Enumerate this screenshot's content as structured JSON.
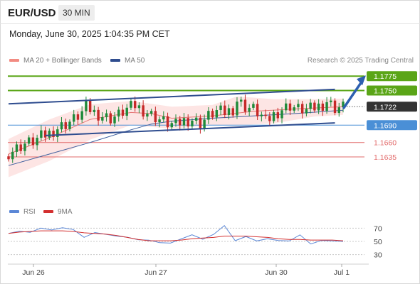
{
  "header": {
    "symbol": "EUR/USD",
    "timeframe": "30 MIN",
    "timestamp": "Monday, June 30, 2025 1:04:35 PM CET"
  },
  "legend": {
    "bollinger_label": "MA 20 + Bollinger Bands",
    "ma50_label": "MA 50",
    "rsi_label": "RSI",
    "rsi_ma_label": "9MA",
    "credit": "Research © 2025 Trading Central"
  },
  "colors": {
    "up_candle": "#1f8a3a",
    "down_candle": "#c62828",
    "bollinger_fill": "#fde0df",
    "ma20": "#e57373",
    "ma50": "#3f5f9e",
    "channel": "#2f4d8f",
    "resistance": "#5aa517",
    "pivot": "#4a8fd6",
    "support": "#e26a6a",
    "last_price_bg": "#333333",
    "rsi_line": "#5b87d6",
    "rsi_ma_line": "#d32f2f"
  },
  "chart_data": [
    {
      "type": "candlestick",
      "title": "EUR/USD",
      "x_ticks": [
        "Jun 26",
        "Jun 27",
        "Jun 30",
        "Jul 1"
      ],
      "ylim": [
        1.156,
        1.179
      ],
      "levels": [
        {
          "value": 1.1775,
          "label": "1.1775",
          "kind": "resistance"
        },
        {
          "value": 1.175,
          "label": "1.1750",
          "kind": "resistance"
        },
        {
          "value": 1.1722,
          "label": "1.1722",
          "kind": "last"
        },
        {
          "value": 1.169,
          "label": "1.1690",
          "kind": "pivot"
        },
        {
          "value": 1.166,
          "label": "1.1660",
          "kind": "support"
        },
        {
          "value": 1.1635,
          "label": "1.1635",
          "kind": "support"
        }
      ],
      "channel": {
        "upper": [
          [
            0,
            1.1727
          ],
          [
            80,
            1.1752
          ]
        ],
        "lower": [
          [
            9,
            1.1672
          ],
          [
            80,
            1.1694
          ]
        ]
      },
      "close_path": [
        [
          0,
          1.1642
        ],
        [
          2,
          1.165
        ],
        [
          4,
          1.1658
        ],
        [
          6,
          1.1662
        ],
        [
          8,
          1.167
        ],
        [
          10,
          1.1676
        ],
        [
          12,
          1.1685
        ],
        [
          14,
          1.1692
        ],
        [
          16,
          1.17
        ],
        [
          18,
          1.1712
        ],
        [
          19,
          1.1722
        ],
        [
          21,
          1.1712
        ],
        [
          23,
          1.1706
        ],
        [
          25,
          1.1702
        ],
        [
          27,
          1.1708
        ],
        [
          29,
          1.1718
        ],
        [
          31,
          1.1724
        ],
        [
          33,
          1.1716
        ],
        [
          35,
          1.1708
        ],
        [
          37,
          1.17
        ],
        [
          39,
          1.1693
        ],
        [
          41,
          1.169
        ],
        [
          43,
          1.1698
        ],
        [
          45,
          1.17
        ],
        [
          47,
          1.1693
        ],
        [
          49,
          1.1706
        ],
        [
          51,
          1.1714
        ],
        [
          53,
          1.1712
        ],
        [
          55,
          1.1718
        ],
        [
          56,
          1.1733
        ],
        [
          58,
          1.1722
        ],
        [
          60,
          1.1718
        ],
        [
          62,
          1.1706
        ],
        [
          63,
          1.1695
        ],
        [
          65,
          1.1708
        ],
        [
          67,
          1.1718
        ],
        [
          69,
          1.1724
        ],
        [
          71,
          1.1718
        ],
        [
          73,
          1.1716
        ],
        [
          75,
          1.172
        ],
        [
          77,
          1.1726
        ],
        [
          78,
          1.1732
        ],
        [
          80,
          1.172
        ],
        [
          82,
          1.1722
        ]
      ],
      "ma50_path": [
        [
          0,
          1.162
        ],
        [
          10,
          1.164
        ],
        [
          20,
          1.166
        ],
        [
          30,
          1.1682
        ],
        [
          35,
          1.1692
        ],
        [
          40,
          1.1697
        ],
        [
          50,
          1.1702
        ],
        [
          60,
          1.1706
        ],
        [
          70,
          1.171
        ],
        [
          82,
          1.1716
        ]
      ],
      "ma20_path": [
        [
          0,
          1.164
        ],
        [
          10,
          1.1668
        ],
        [
          20,
          1.17
        ],
        [
          30,
          1.1712
        ],
        [
          35,
          1.171
        ],
        [
          40,
          1.1702
        ],
        [
          50,
          1.1706
        ],
        [
          60,
          1.1714
        ],
        [
          70,
          1.1718
        ],
        [
          82,
          1.1722
        ]
      ],
      "bollinger_upper": [
        [
          0,
          1.1666
        ],
        [
          10,
          1.17
        ],
        [
          20,
          1.1726
        ],
        [
          30,
          1.1732
        ],
        [
          40,
          1.1722
        ],
        [
          50,
          1.1725
        ],
        [
          56,
          1.174
        ],
        [
          65,
          1.1735
        ],
        [
          75,
          1.1735
        ],
        [
          82,
          1.1736
        ]
      ],
      "bollinger_lower": [
        [
          0,
          1.16
        ],
        [
          10,
          1.1628
        ],
        [
          20,
          1.1665
        ],
        [
          30,
          1.169
        ],
        [
          40,
          1.1684
        ],
        [
          50,
          1.169
        ],
        [
          56,
          1.169
        ],
        [
          65,
          1.1693
        ],
        [
          75,
          1.1705
        ],
        [
          82,
          1.1708
        ]
      ]
    },
    {
      "type": "line",
      "title": "RSI",
      "ylim": [
        20,
        80
      ],
      "y_ticks": [
        70,
        50,
        30
      ],
      "series": [
        {
          "name": "RSI",
          "values": [
            66,
            68,
            65,
            70,
            66,
            68,
            64,
            60,
            66,
            62,
            58,
            55,
            50,
            48,
            52,
            50,
            55,
            60,
            52,
            58,
            70,
            55,
            60,
            52,
            54,
            50,
            48,
            56,
            50,
            54,
            52,
            50
          ]
        },
        {
          "name": "9MA",
          "values": [
            62,
            64,
            65,
            66,
            66,
            66,
            65,
            63,
            62,
            61,
            59,
            56,
            53,
            51,
            51,
            51,
            52,
            54,
            55,
            56,
            58,
            58,
            58,
            57,
            56,
            54,
            53,
            53,
            52,
            52,
            52,
            51
          ]
        }
      ]
    }
  ]
}
